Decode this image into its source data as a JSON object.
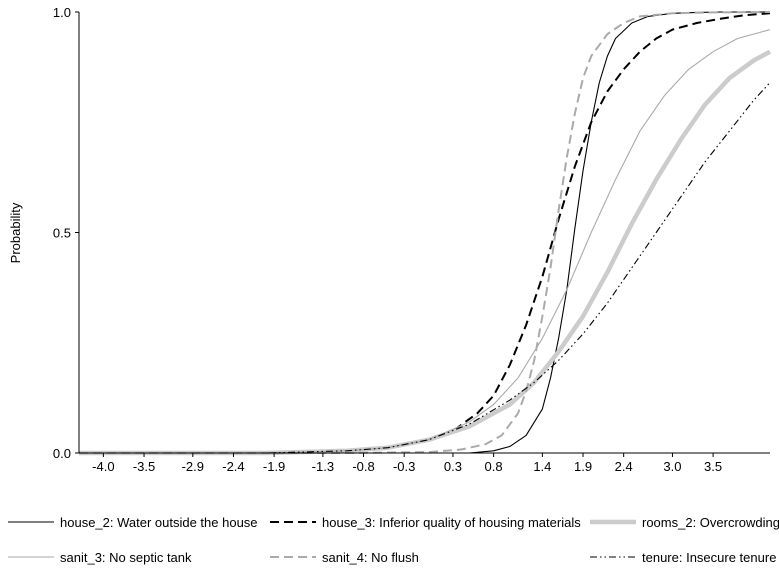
{
  "chart_data": {
    "type": "line",
    "title": "",
    "xlabel": "",
    "ylabel": "Probability",
    "xlim": [
      -4.3,
      4.2
    ],
    "ylim": [
      0,
      1
    ],
    "grid": false,
    "legend_position": "bottom",
    "x_ticks": [
      -4.0,
      -3.5,
      -2.9,
      -2.4,
      -1.9,
      -1.3,
      -0.8,
      -0.3,
      0.3,
      0.8,
      1.4,
      1.9,
      2.4,
      3.0,
      3.5
    ],
    "x_tick_labels": [
      "-4.0",
      "-3.5",
      "-2.9",
      "-2.4",
      "-1.9",
      "-1.3",
      "-0.8",
      "-0.3",
      "0.3",
      "0.8",
      "1.4",
      "1.9",
      "2.4",
      "3.0",
      "3.5"
    ],
    "y_ticks": [
      0,
      0.5,
      1
    ],
    "y_tick_labels": [
      "0.0",
      "0.5",
      "1.0"
    ],
    "series": [
      {
        "name": "house_2: Water outside the house",
        "color": "#000000",
        "dash": "solid",
        "weight": "thin",
        "x": [
          -4.3,
          -2.0,
          -1.0,
          0.0,
          0.5,
          0.8,
          1.0,
          1.2,
          1.4,
          1.5,
          1.6,
          1.7,
          1.8,
          1.9,
          2.0,
          2.1,
          2.2,
          2.3,
          2.5,
          2.7,
          3.0,
          3.3,
          3.6,
          4.2
        ],
        "y": [
          0,
          0,
          0,
          0,
          0,
          0.005,
          0.015,
          0.04,
          0.1,
          0.17,
          0.26,
          0.37,
          0.51,
          0.64,
          0.75,
          0.84,
          0.9,
          0.94,
          0.975,
          0.99,
          0.997,
          0.999,
          1.0,
          1.0
        ]
      },
      {
        "name": "house_3: Inferior quality of housing materials",
        "color": "#000000",
        "dash": "longdash",
        "weight": "medium",
        "x": [
          -4.3,
          -2.0,
          -1.0,
          -0.5,
          0.0,
          0.3,
          0.6,
          0.8,
          1.0,
          1.2,
          1.4,
          1.6,
          1.8,
          2.0,
          2.2,
          2.4,
          2.6,
          2.8,
          3.0,
          3.3,
          3.6,
          3.9,
          4.2
        ],
        "y": [
          0,
          0,
          0.005,
          0.01,
          0.03,
          0.05,
          0.09,
          0.13,
          0.2,
          0.29,
          0.4,
          0.53,
          0.65,
          0.75,
          0.82,
          0.87,
          0.91,
          0.94,
          0.96,
          0.975,
          0.985,
          0.993,
          0.997
        ]
      },
      {
        "name": "rooms_2: Overcrowding",
        "color": "#cccccc",
        "dash": "solid",
        "weight": "thick",
        "x": [
          -4.3,
          -2.0,
          -1.0,
          -0.5,
          0.0,
          0.5,
          1.0,
          1.3,
          1.6,
          1.9,
          2.2,
          2.5,
          2.8,
          3.1,
          3.4,
          3.7,
          4.0,
          4.2
        ],
        "y": [
          0,
          0,
          0.005,
          0.012,
          0.03,
          0.06,
          0.11,
          0.16,
          0.23,
          0.31,
          0.41,
          0.52,
          0.62,
          0.71,
          0.79,
          0.85,
          0.89,
          0.91
        ]
      },
      {
        "name": "sanit_3: No septic tank",
        "color": "#aaaaaa",
        "dash": "solid",
        "weight": "thin",
        "x": [
          -4.3,
          -2.0,
          -1.0,
          -0.5,
          0.0,
          0.5,
          0.8,
          1.1,
          1.4,
          1.7,
          2.0,
          2.3,
          2.6,
          2.9,
          3.2,
          3.5,
          3.8,
          4.2
        ],
        "y": [
          0,
          0,
          0.005,
          0.012,
          0.03,
          0.07,
          0.11,
          0.17,
          0.26,
          0.37,
          0.5,
          0.62,
          0.73,
          0.81,
          0.87,
          0.91,
          0.94,
          0.96
        ]
      },
      {
        "name": "sanit_4: No flush",
        "color": "#aaaaaa",
        "dash": "longdash",
        "weight": "medium",
        "x": [
          -4.3,
          -2.0,
          -1.0,
          0.0,
          0.4,
          0.7,
          0.9,
          1.1,
          1.2,
          1.3,
          1.4,
          1.5,
          1.6,
          1.7,
          1.8,
          1.9,
          2.0,
          2.2,
          2.4,
          2.6,
          3.0,
          3.5,
          4.2
        ],
        "y": [
          0,
          0,
          0,
          0.002,
          0.008,
          0.02,
          0.04,
          0.09,
          0.14,
          0.21,
          0.31,
          0.42,
          0.55,
          0.67,
          0.77,
          0.85,
          0.9,
          0.95,
          0.975,
          0.99,
          0.997,
          0.999,
          1.0
        ]
      },
      {
        "name": "tenure: Insecure tenure",
        "color": "#000000",
        "dash": "dashdotdot",
        "weight": "thin",
        "x": [
          -4.3,
          -2.0,
          -1.0,
          -0.5,
          0.0,
          0.5,
          1.0,
          1.3,
          1.6,
          1.9,
          2.2,
          2.5,
          2.8,
          3.1,
          3.4,
          3.7,
          4.0,
          4.2
        ],
        "y": [
          0,
          0,
          0.005,
          0.012,
          0.03,
          0.065,
          0.12,
          0.16,
          0.21,
          0.27,
          0.34,
          0.42,
          0.5,
          0.58,
          0.66,
          0.73,
          0.8,
          0.84
        ]
      }
    ]
  }
}
